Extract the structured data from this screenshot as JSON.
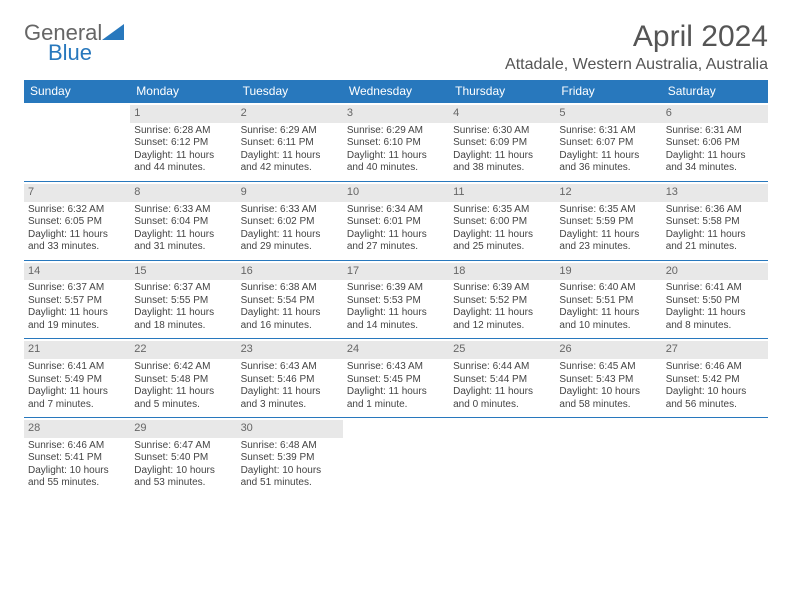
{
  "brand": {
    "word1": "General",
    "word2": "Blue"
  },
  "title": "April 2024",
  "location": "Attadale, Western Australia, Australia",
  "colors": {
    "header_bg": "#2878bd",
    "header_text": "#ffffff",
    "daynum_bg": "#e8e8e8",
    "row_border": "#2878bd",
    "body_text": "#444444",
    "title_text": "#555555"
  },
  "weekdays": [
    "Sunday",
    "Monday",
    "Tuesday",
    "Wednesday",
    "Thursday",
    "Friday",
    "Saturday"
  ],
  "weeks": [
    [
      null,
      {
        "n": "1",
        "sr": "6:28 AM",
        "ss": "6:12 PM",
        "dl": "11 hours and 44 minutes."
      },
      {
        "n": "2",
        "sr": "6:29 AM",
        "ss": "6:11 PM",
        "dl": "11 hours and 42 minutes."
      },
      {
        "n": "3",
        "sr": "6:29 AM",
        "ss": "6:10 PM",
        "dl": "11 hours and 40 minutes."
      },
      {
        "n": "4",
        "sr": "6:30 AM",
        "ss": "6:09 PM",
        "dl": "11 hours and 38 minutes."
      },
      {
        "n": "5",
        "sr": "6:31 AM",
        "ss": "6:07 PM",
        "dl": "11 hours and 36 minutes."
      },
      {
        "n": "6",
        "sr": "6:31 AM",
        "ss": "6:06 PM",
        "dl": "11 hours and 34 minutes."
      }
    ],
    [
      {
        "n": "7",
        "sr": "6:32 AM",
        "ss": "6:05 PM",
        "dl": "11 hours and 33 minutes."
      },
      {
        "n": "8",
        "sr": "6:33 AM",
        "ss": "6:04 PM",
        "dl": "11 hours and 31 minutes."
      },
      {
        "n": "9",
        "sr": "6:33 AM",
        "ss": "6:02 PM",
        "dl": "11 hours and 29 minutes."
      },
      {
        "n": "10",
        "sr": "6:34 AM",
        "ss": "6:01 PM",
        "dl": "11 hours and 27 minutes."
      },
      {
        "n": "11",
        "sr": "6:35 AM",
        "ss": "6:00 PM",
        "dl": "11 hours and 25 minutes."
      },
      {
        "n": "12",
        "sr": "6:35 AM",
        "ss": "5:59 PM",
        "dl": "11 hours and 23 minutes."
      },
      {
        "n": "13",
        "sr": "6:36 AM",
        "ss": "5:58 PM",
        "dl": "11 hours and 21 minutes."
      }
    ],
    [
      {
        "n": "14",
        "sr": "6:37 AM",
        "ss": "5:57 PM",
        "dl": "11 hours and 19 minutes."
      },
      {
        "n": "15",
        "sr": "6:37 AM",
        "ss": "5:55 PM",
        "dl": "11 hours and 18 minutes."
      },
      {
        "n": "16",
        "sr": "6:38 AM",
        "ss": "5:54 PM",
        "dl": "11 hours and 16 minutes."
      },
      {
        "n": "17",
        "sr": "6:39 AM",
        "ss": "5:53 PM",
        "dl": "11 hours and 14 minutes."
      },
      {
        "n": "18",
        "sr": "6:39 AM",
        "ss": "5:52 PM",
        "dl": "11 hours and 12 minutes."
      },
      {
        "n": "19",
        "sr": "6:40 AM",
        "ss": "5:51 PM",
        "dl": "11 hours and 10 minutes."
      },
      {
        "n": "20",
        "sr": "6:41 AM",
        "ss": "5:50 PM",
        "dl": "11 hours and 8 minutes."
      }
    ],
    [
      {
        "n": "21",
        "sr": "6:41 AM",
        "ss": "5:49 PM",
        "dl": "11 hours and 7 minutes."
      },
      {
        "n": "22",
        "sr": "6:42 AM",
        "ss": "5:48 PM",
        "dl": "11 hours and 5 minutes."
      },
      {
        "n": "23",
        "sr": "6:43 AM",
        "ss": "5:46 PM",
        "dl": "11 hours and 3 minutes."
      },
      {
        "n": "24",
        "sr": "6:43 AM",
        "ss": "5:45 PM",
        "dl": "11 hours and 1 minute."
      },
      {
        "n": "25",
        "sr": "6:44 AM",
        "ss": "5:44 PM",
        "dl": "11 hours and 0 minutes."
      },
      {
        "n": "26",
        "sr": "6:45 AM",
        "ss": "5:43 PM",
        "dl": "10 hours and 58 minutes."
      },
      {
        "n": "27",
        "sr": "6:46 AM",
        "ss": "5:42 PM",
        "dl": "10 hours and 56 minutes."
      }
    ],
    [
      {
        "n": "28",
        "sr": "6:46 AM",
        "ss": "5:41 PM",
        "dl": "10 hours and 55 minutes."
      },
      {
        "n": "29",
        "sr": "6:47 AM",
        "ss": "5:40 PM",
        "dl": "10 hours and 53 minutes."
      },
      {
        "n": "30",
        "sr": "6:48 AM",
        "ss": "5:39 PM",
        "dl": "10 hours and 51 minutes."
      },
      null,
      null,
      null,
      null
    ]
  ],
  "labels": {
    "sunrise": "Sunrise:",
    "sunset": "Sunset:",
    "daylight": "Daylight:"
  }
}
